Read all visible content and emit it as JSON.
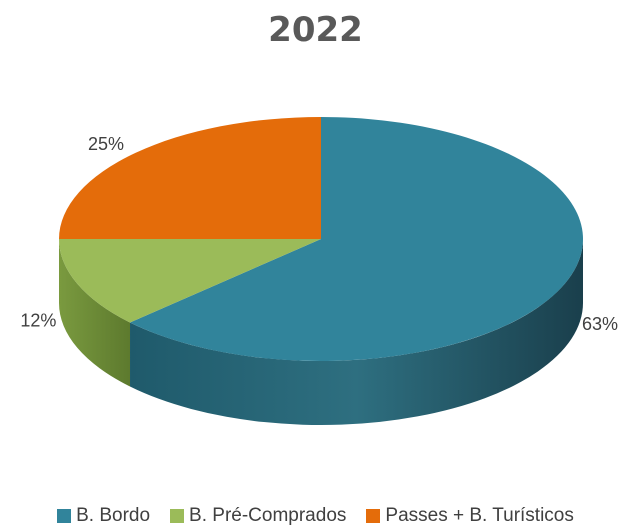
{
  "chart_data": {
    "type": "pie",
    "title": "2022",
    "categories": [
      "B. Bordo",
      "B. Pré-Comprados",
      "Passes + B. Turísticos"
    ],
    "values": [
      63,
      12,
      25
    ],
    "labels": [
      "63%",
      "12%",
      "25%"
    ],
    "colors": [
      "#31849B",
      "#9BBB59",
      "#E46C0A"
    ],
    "legend_position": "bottom",
    "style": "3d"
  }
}
